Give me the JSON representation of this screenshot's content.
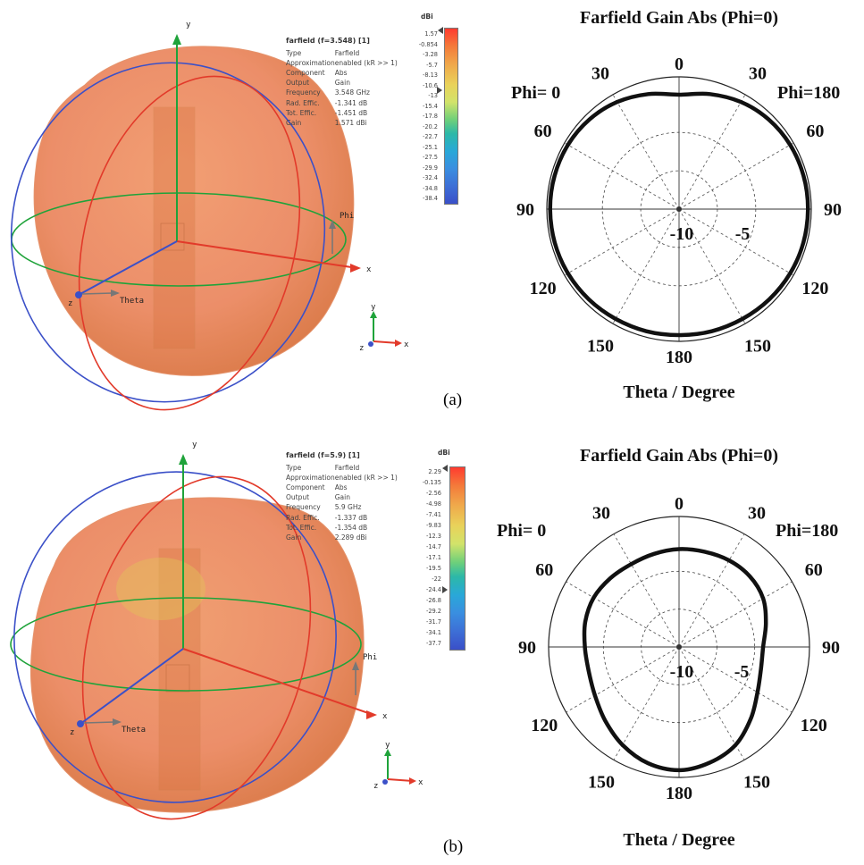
{
  "panels": [
    {
      "caption": "(a)",
      "info": {
        "title": "farfield (f=3.548) [1]",
        "rows": [
          {
            "key": "Type",
            "value": "Farfield"
          },
          {
            "key": "Approximation",
            "value": "enabled (kR >> 1)"
          },
          {
            "key": "Component",
            "value": "Abs"
          },
          {
            "key": "Output",
            "value": "Gain"
          },
          {
            "key": "Frequency",
            "value": "3.548 GHz"
          },
          {
            "key": "Rad. Effic.",
            "value": "-1.341 dB"
          },
          {
            "key": "Tot. Effic.",
            "value": "-1.451 dB"
          },
          {
            "key": "Gain",
            "value": "1.571 dBi"
          }
        ]
      },
      "colorbar": {
        "unit": "dBi",
        "ticks": [
          "1.57",
          "-0.854",
          "-3.28",
          "-5.7",
          "-8.13",
          "-10.6",
          "-13",
          "-15.4",
          "-17.8",
          "-20.2",
          "-22.7",
          "-25.1",
          "-27.5",
          "-29.9",
          "-32.4",
          "-34.8",
          "-38.4"
        ]
      },
      "view3d": {
        "axis_y": "y",
        "axis_x": "x",
        "axis_z": "z",
        "phi": "Phi",
        "theta": "Theta",
        "mini_x": "x",
        "mini_y": "y",
        "mini_z": "z"
      },
      "chart_data": {
        "type": "polar",
        "title": "Farfield Gain Abs (Phi=0)",
        "xlabel": "Theta / Degree",
        "phi_left": "Phi=  0",
        "phi_right": "Phi=180",
        "angle_labels": [
          "0",
          "30",
          "60",
          "90",
          "120",
          "150",
          "180",
          "150",
          "120",
          "90",
          "60",
          "30"
        ],
        "radial_labels": [
          "-10",
          "-5"
        ],
        "theta_deg": [
          0,
          15,
          30,
          45,
          60,
          75,
          90,
          105,
          120,
          135,
          150,
          165,
          180,
          195,
          210,
          225,
          240,
          255,
          270,
          285,
          300,
          315,
          330,
          345
        ],
        "gain_dbi": [
          -0.3,
          0.3,
          0.9,
          1.3,
          1.5,
          1.57,
          1.57,
          1.55,
          1.5,
          1.4,
          1.3,
          1.25,
          1.2,
          1.25,
          1.3,
          1.4,
          1.5,
          1.55,
          1.57,
          1.57,
          1.5,
          1.3,
          0.9,
          0.3
        ],
        "rlim": [
          -15,
          2
        ]
      }
    },
    {
      "caption": "(b)",
      "info": {
        "title": "farfield (f=5.9) [1]",
        "rows": [
          {
            "key": "Type",
            "value": "Farfield"
          },
          {
            "key": "Approximation",
            "value": "enabled (kR >> 1)"
          },
          {
            "key": "Component",
            "value": "Abs"
          },
          {
            "key": "Output",
            "value": "Gain"
          },
          {
            "key": "Frequency",
            "value": "5.9 GHz"
          },
          {
            "key": "Rad. Effic.",
            "value": "-1.337 dB"
          },
          {
            "key": "Tot. Effic.",
            "value": "-1.354 dB"
          },
          {
            "key": "Gain",
            "value": "2.289 dBi"
          }
        ]
      },
      "colorbar": {
        "unit": "dBi",
        "ticks": [
          "2.29",
          "-0.135",
          "-2.56",
          "-4.98",
          "-7.41",
          "-9.83",
          "-12.3",
          "-14.7",
          "-17.1",
          "-19.5",
          "-22",
          "-24.4",
          "-26.8",
          "-29.2",
          "-31.7",
          "-34.1",
          "-37.7"
        ]
      },
      "view3d": {
        "axis_y": "y",
        "axis_x": "x",
        "axis_z": "z",
        "phi": "Phi",
        "theta": "Theta",
        "mini_x": "x",
        "mini_y": "y",
        "mini_z": "z"
      },
      "chart_data": {
        "type": "polar",
        "title": "Farfield Gain Abs (Phi=0)",
        "xlabel": "Theta / Degree",
        "phi_left": "Phi=  0",
        "phi_right": "Phi=180",
        "angle_labels": [
          "0",
          "30",
          "60",
          "90",
          "120",
          "150",
          "180",
          "150",
          "120",
          "90",
          "60",
          "30"
        ],
        "radial_labels": [
          "-10",
          "-5"
        ],
        "theta_deg": [
          0,
          15,
          30,
          45,
          60,
          75,
          90,
          105,
          120,
          135,
          150,
          165,
          180,
          195,
          210,
          225,
          240,
          255,
          270,
          285,
          300,
          315,
          330,
          345
        ],
        "gain_dbi": [
          -1.5,
          -1.4,
          -1.2,
          -1.2,
          -1.6,
          -2.6,
          -3.4,
          -3.3,
          -2.5,
          -1.0,
          0.6,
          1.5,
          2.0,
          1.6,
          0.6,
          -0.6,
          -1.6,
          -2.1,
          -2.0,
          -1.6,
          -1.4,
          -1.6,
          -1.8,
          -1.7
        ],
        "rlim": [
          -15,
          3
        ]
      }
    }
  ],
  "colors": {
    "pattern_surface": "#ec8a63",
    "axis_green": "#1fa33a",
    "axis_red": "#e23a2a",
    "axis_blue": "#3b50c8",
    "curve": "#111111"
  }
}
